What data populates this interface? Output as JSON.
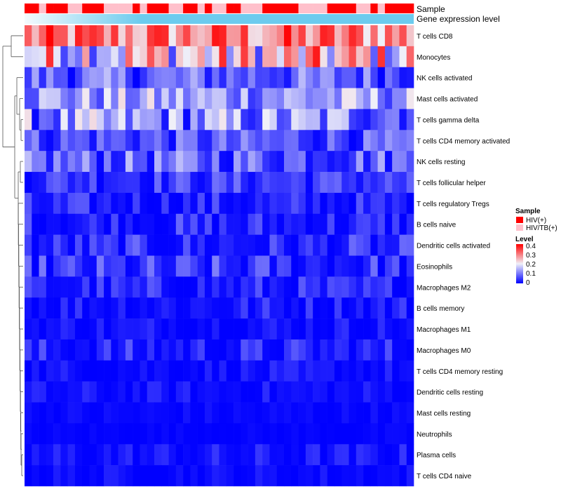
{
  "chart_data": {
    "type": "heatmap",
    "title": "",
    "annotation_labels": [
      "Sample",
      "Gene expression level"
    ],
    "sample_types": [
      "HIV(+)",
      "HIV(+)",
      "HIV/TB(+)",
      "HIV(+)",
      "HIV(+)",
      "HIV(+)",
      "HIV/TB(+)",
      "HIV/TB(+)",
      "HIV(+)",
      "HIV(+)",
      "HIV(+)",
      "HIV/TB(+)",
      "HIV/TB(+)",
      "HIV/TB(+)",
      "HIV/TB(+)",
      "HIV(+)",
      "HIV/TB(+)",
      "HIV(+)",
      "HIV(+)",
      "HIV(+)",
      "HIV/TB(+)",
      "HIV/TB(+)",
      "HIV(+)",
      "HIV(+)",
      "HIV/TB(+)",
      "HIV(+)",
      "HIV/TB(+)",
      "HIV/TB(+)",
      "HIV(+)",
      "HIV(+)",
      "HIV/TB(+)",
      "HIV/TB(+)",
      "HIV/TB(+)",
      "HIV(+)",
      "HIV(+)",
      "HIV(+)",
      "HIV(+)",
      "HIV(+)",
      "HIV/TB(+)",
      "HIV/TB(+)",
      "HIV/TB(+)",
      "HIV/TB(+)",
      "HIV(+)",
      "HIV(+)",
      "HIV(+)",
      "HIV(+)",
      "HIV/TB(+)",
      "HIV/TB(+)",
      "HIV(+)",
      "HIV/TB(+)",
      "HIV(+)",
      "HIV(+)",
      "HIV(+)",
      "HIV(+)"
    ],
    "rows": [
      "T cells CD8",
      "Monocytes",
      "NK cells activated",
      "Mast cells activated",
      "T cells gamma delta",
      "T cells CD4 memory activated",
      "NK cells resting",
      "T cells follicular helper",
      "T cells regulatory  Tregs",
      "B cells naive",
      "Dendritic cells activated",
      "Eosinophils",
      "Macrophages M2",
      "B cells memory",
      "Macrophages M1",
      "Macrophages M0",
      "T cells CD4 memory resting",
      "Dendritic cells resting",
      "Mast cells resting",
      "Neutrophils",
      "Plasma cells",
      "T cells CD4 naive"
    ],
    "row_level_range": [
      [
        0.18,
        0.4
      ],
      [
        0.05,
        0.38
      ],
      [
        0.0,
        0.16
      ],
      [
        0.04,
        0.22
      ],
      [
        0.0,
        0.22
      ],
      [
        0.0,
        0.13
      ],
      [
        0.0,
        0.16
      ],
      [
        0.0,
        0.1
      ],
      [
        0.0,
        0.08
      ],
      [
        0.0,
        0.09
      ],
      [
        0.0,
        0.09
      ],
      [
        0.0,
        0.11
      ],
      [
        0.0,
        0.08
      ],
      [
        0.0,
        0.07
      ],
      [
        0.0,
        0.05
      ],
      [
        0.0,
        0.08
      ],
      [
        0.0,
        0.04
      ],
      [
        0.0,
        0.04
      ],
      [
        0.0,
        0.02
      ],
      [
        0.0,
        0.01
      ],
      [
        0.0,
        0.05
      ],
      [
        0.0,
        0.03
      ]
    ],
    "legend": {
      "sample_title": "Sample",
      "sample_entries": [
        {
          "label": "HIV(+)",
          "color": "#FF0000"
        },
        {
          "label": "HIV/TB(+)",
          "color": "#FFC0CB"
        }
      ],
      "level_title": "Level",
      "level_ticks": [
        "0.4",
        "0.3",
        "0.2",
        "0.1",
        "0"
      ],
      "level_range": [
        0,
        0.4
      ]
    },
    "colors": {
      "low": "#0000FF",
      "mid": "#F0F0F8",
      "high": "#FF0000",
      "expression_bar": "#6CCBEE"
    }
  }
}
